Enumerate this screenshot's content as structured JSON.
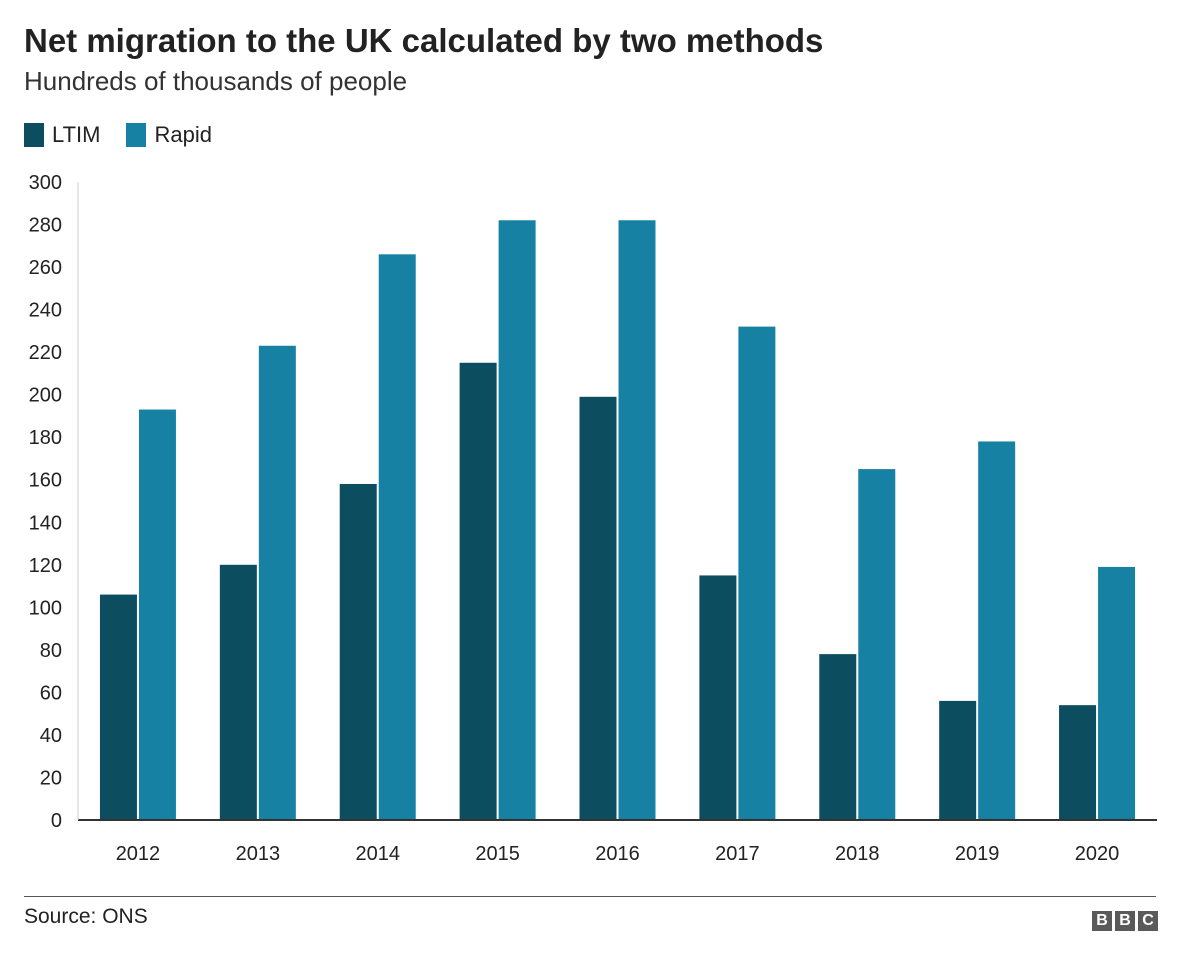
{
  "header": {
    "title": "Net migration to the UK calculated by two methods",
    "subtitle": "Hundreds of thousands of people"
  },
  "legend": [
    {
      "label": "LTIM",
      "color": "#0c4d60"
    },
    {
      "label": "Rapid",
      "color": "#1681a3"
    }
  ],
  "chart_data": {
    "type": "bar",
    "title": "Net migration to the UK calculated by two methods",
    "subtitle": "Hundreds of thousands of people",
    "xlabel": "",
    "ylabel": "",
    "categories": [
      "2012",
      "2013",
      "2014",
      "2015",
      "2016",
      "2017",
      "2018",
      "2019",
      "2020"
    ],
    "series": [
      {
        "name": "LTIM",
        "color": "#0c4d60",
        "values": [
          106,
          120,
          158,
          215,
          199,
          115,
          78,
          56,
          54
        ]
      },
      {
        "name": "Rapid",
        "color": "#1681a3",
        "values": [
          193,
          223,
          266,
          282,
          282,
          232,
          165,
          178,
          119
        ]
      }
    ],
    "ylim": [
      0,
      300
    ],
    "yticks": [
      "0",
      "20",
      "40",
      "60",
      "80",
      "100",
      "120",
      "140",
      "160",
      "180",
      "200",
      "220",
      "240",
      "260",
      "280",
      "300"
    ],
    "grid": false,
    "legend_position": "top-left"
  },
  "footer": {
    "source": "Source: ONS",
    "logo_letters": [
      "B",
      "B",
      "C"
    ]
  }
}
